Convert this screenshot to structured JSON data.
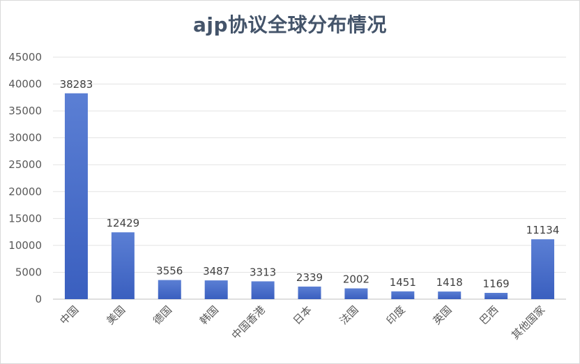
{
  "chart_data": {
    "type": "bar",
    "title": "ajp协议全球分布情况",
    "categories": [
      "中国",
      "美国",
      "德国",
      "韩国",
      "中国香港",
      "日本",
      "法国",
      "印度",
      "英国",
      "巴西",
      "其他国家"
    ],
    "values": [
      38283,
      12429,
      3556,
      3487,
      3313,
      2339,
      2002,
      1451,
      1418,
      1169,
      11134
    ],
    "ylim": [
      0,
      45000
    ],
    "yticks": [
      0,
      5000,
      10000,
      15000,
      20000,
      25000,
      30000,
      35000,
      40000,
      45000
    ],
    "grid": true,
    "data_labels": true,
    "bar_color_top": "#5b7fd4",
    "bar_color_bottom": "#3a5fbf"
  }
}
